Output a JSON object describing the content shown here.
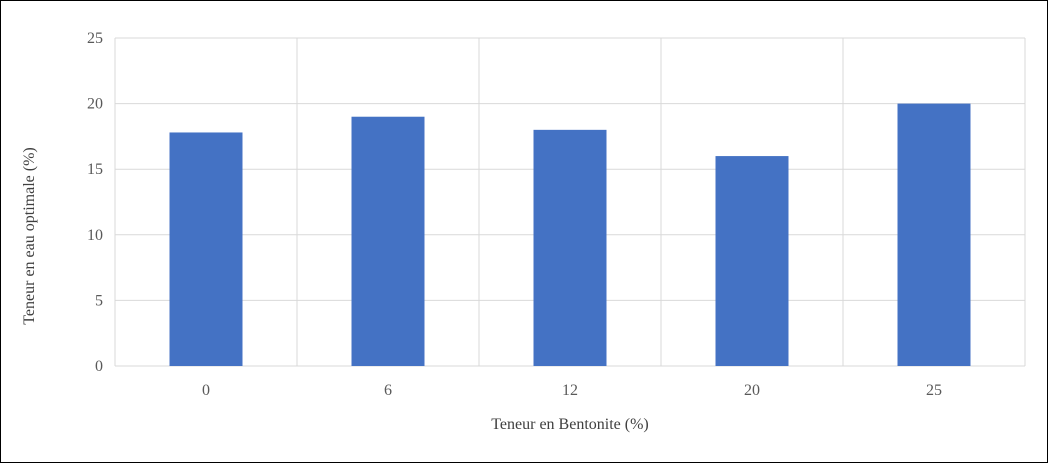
{
  "chart_data": {
    "type": "bar",
    "categories": [
      "0",
      "6",
      "12",
      "20",
      "25"
    ],
    "values": [
      17.8,
      19.0,
      18.0,
      16.0,
      20.0
    ],
    "xlabel": "Teneur en Bentonite (%)",
    "ylabel": "Teneur en eau optimale (%)",
    "ylim": [
      0,
      25
    ],
    "yticks": [
      "0",
      "5",
      "10",
      "15",
      "20",
      "25"
    ],
    "grid": true,
    "legend": "none",
    "bar_color": "#4472C4",
    "grid_color": "#D9D9D9"
  }
}
